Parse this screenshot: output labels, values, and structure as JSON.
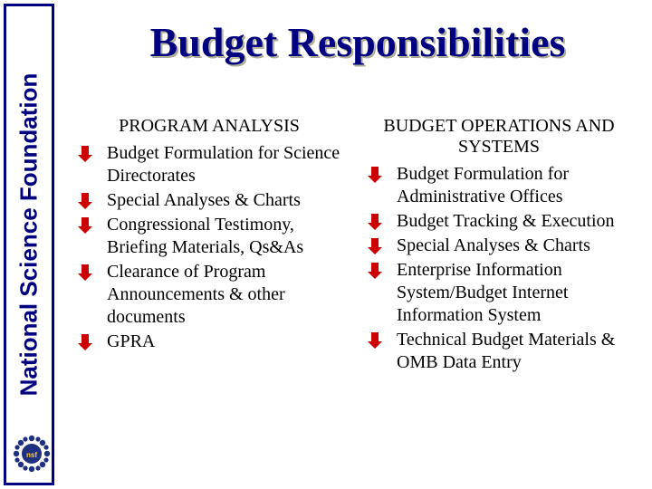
{
  "sidebar": {
    "label": "National Science Foundation",
    "border_color": "#000080",
    "text_color": "#000080",
    "logo_color": "#203080"
  },
  "title": {
    "text": "Budget Responsibilities",
    "color": "#000080",
    "shadow_color": "#aaaa99"
  },
  "columns": {
    "bullet_color": "#cc0000",
    "left": {
      "header": "PROGRAM ANALYSIS",
      "items": [
        "Budget Formulation for Science Directorates",
        "Special Analyses & Charts",
        "Congressional Testimony, Briefing Materials, Qs&As",
        "Clearance of Program Announcements & other documents",
        "GPRA"
      ]
    },
    "right": {
      "header": "BUDGET OPERATIONS AND SYSTEMS",
      "items": [
        "Budget Formulation for Administrative Offices",
        "Budget Tracking & Execution",
        "Special Analyses & Charts",
        "Enterprise Information System/Budget Internet Information System",
        "Technical Budget Materials & OMB Data Entry"
      ]
    }
  }
}
